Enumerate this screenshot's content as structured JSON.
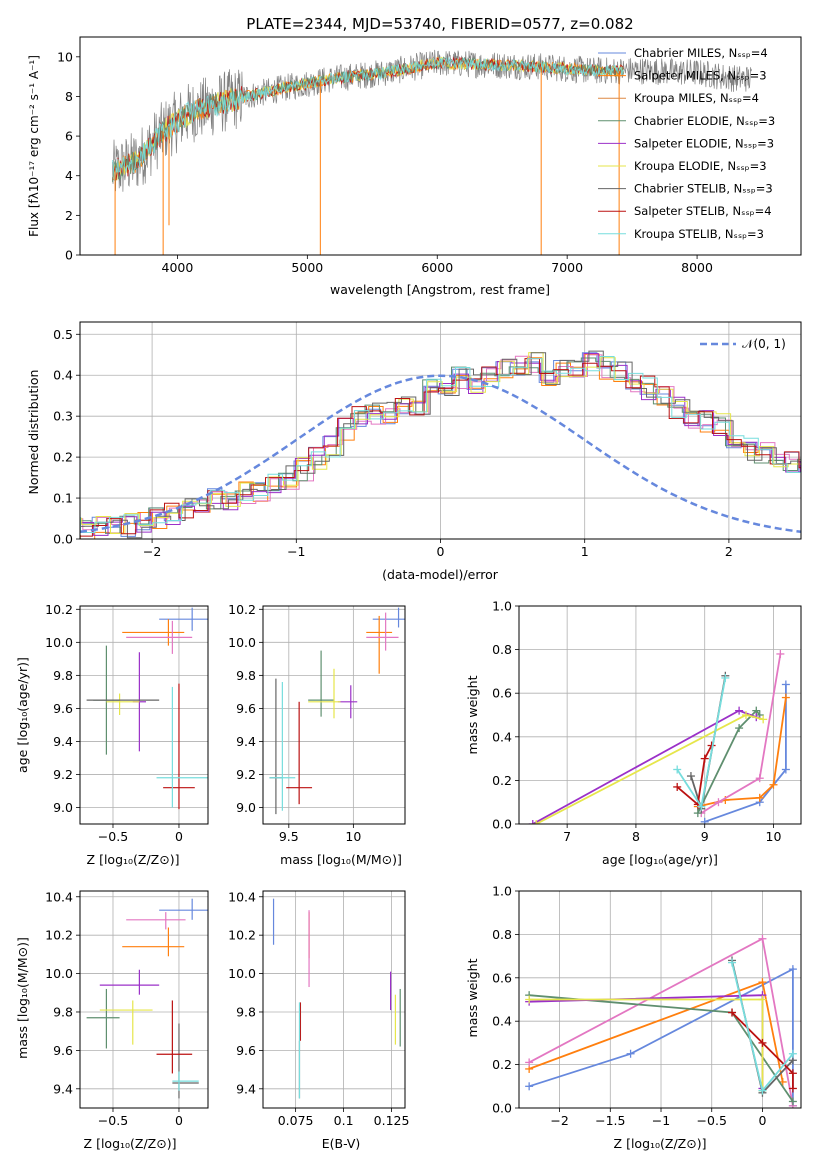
{
  "figure_title": "PLATE=2344, MJD=53740, FIBERID=0577, z=0.082",
  "colors": {
    "chabrier_miles": "#6688dd",
    "salpeter_miles": "#ff7f0e",
    "kroupa_miles": "#dd8844",
    "chabrier_elodie": "#5f8f6f",
    "salpeter_elodie": "#9b30c8",
    "kroupa_elodie": "#e6e64a",
    "chabrier_stelib": "#666666",
    "salpeter_stelib": "#bb1111",
    "kroupa_stelib": "#77dddd",
    "pink": "#e377c2",
    "normal_curve": "#6688dd",
    "spectrum_gray": "#808080"
  },
  "labels": {
    "p1_xlabel": "wavelength [Angstrom, rest frame]",
    "p1_ylabel": "Flux [fλ10⁻¹⁷ erg cm⁻² s⁻¹ A⁻¹]",
    "p2_xlabel": "(data-model)/error",
    "p2_ylabel": "Normed distribution",
    "p2_legend": "𝒩(0, 1)",
    "p3_xlabel": "Z [log₁₀(Z/Z⊙)]",
    "p3_ylabel": "age  [log₁₀(age/yr)]",
    "p4_xlabel": "mass [log₁₀(M/M⊙)]",
    "p5_xlabel": "age  [log₁₀(age/yr)]",
    "p5_ylabel": "mass weight",
    "p6_xlabel": "Z [log₁₀(Z/Z⊙)]",
    "p6_ylabel": "mass [log₁₀(M/M⊙)]",
    "p7_xlabel": "E(B-V)",
    "p8_xlabel": "Z [log₁₀(Z/Z⊙)]",
    "p8_ylabel": "mass weight"
  },
  "legend_top": [
    {
      "name": "Chabrier MILES, Nₛₛₚ=4",
      "color": "#6688dd"
    },
    {
      "name": "Salpeter MILES, Nₛₛₚ=3",
      "color": "#ff7f0e"
    },
    {
      "name": "Kroupa MILES, Nₛₛₚ=4",
      "color": "#dd8844"
    },
    {
      "name": "Chabrier ELODIE, Nₛₛₚ=3",
      "color": "#5f8f6f"
    },
    {
      "name": "Salpeter ELODIE, Nₛₛₚ=3",
      "color": "#9b30c8"
    },
    {
      "name": "Kroupa ELODIE, Nₛₛₚ=3",
      "color": "#e6e64a"
    },
    {
      "name": "Chabrier STELIB, Nₛₛₚ=3",
      "color": "#666666"
    },
    {
      "name": "Salpeter STELIB, Nₛₛₚ=4",
      "color": "#bb1111"
    },
    {
      "name": "Kroupa STELIB, Nₛₛₚ=3",
      "color": "#77dddd"
    }
  ],
  "chart_data": [
    {
      "type": "line",
      "panel": "spectrum",
      "xlim": [
        3250,
        8800
      ],
      "ylim": [
        0,
        11
      ],
      "xticks": [
        4000,
        5000,
        6000,
        7000,
        8000
      ],
      "yticks": [
        0,
        2,
        4,
        6,
        8,
        10
      ],
      "trend": [
        [
          3500,
          4.2
        ],
        [
          3700,
          4.8
        ],
        [
          3900,
          6.3
        ],
        [
          4100,
          7.2
        ],
        [
          4400,
          7.8
        ],
        [
          4800,
          8.4
        ],
        [
          5200,
          8.9
        ],
        [
          5600,
          9.2
        ],
        [
          6000,
          9.7
        ],
        [
          6400,
          9.6
        ],
        [
          6800,
          9.5
        ],
        [
          7200,
          9.3
        ],
        [
          7600,
          9.3
        ],
        [
          8000,
          9.2
        ],
        [
          8300,
          8.9
        ],
        [
          8420,
          8.9
        ]
      ],
      "models_end": 7440,
      "drops": [
        [
          3520,
          0
        ],
        [
          3890,
          0
        ],
        [
          3935,
          1.5
        ],
        [
          5100,
          0
        ],
        [
          6800,
          0
        ],
        [
          7400,
          0
        ]
      ]
    },
    {
      "type": "step",
      "panel": "residual_histogram",
      "xlim": [
        -2.5,
        2.5
      ],
      "ylim": [
        0,
        0.53
      ],
      "xticks": [
        -2,
        -1,
        0,
        1,
        2
      ],
      "yticks": [
        0.0,
        0.1,
        0.2,
        0.3,
        0.4,
        0.5
      ],
      "bin_width": 0.1,
      "base_values": [
        0.025,
        0.022,
        0.026,
        0.03,
        0.033,
        0.04,
        0.05,
        0.065,
        0.075,
        0.09,
        0.1,
        0.1,
        0.11,
        0.12,
        0.14,
        0.15,
        0.17,
        0.2,
        0.23,
        0.27,
        0.3,
        0.31,
        0.31,
        0.32,
        0.33,
        0.36,
        0.38,
        0.39,
        0.38,
        0.4,
        0.42,
        0.43,
        0.43,
        0.4,
        0.41,
        0.42,
        0.43,
        0.42,
        0.41,
        0.38,
        0.37,
        0.35,
        0.32,
        0.3,
        0.29,
        0.28,
        0.25,
        0.22,
        0.21,
        0.2,
        0.19,
        0.17,
        0.16,
        0.14,
        0.15,
        0.16,
        0.13,
        0.1,
        0.09,
        0.08,
        0.07,
        0.06,
        0.05,
        0.045,
        0.03,
        0.025,
        0.02
      ],
      "normal_mean": 0,
      "normal_sigma": 1
    },
    {
      "type": "errorbar",
      "panel": "Z_vs_age",
      "xlim": [
        -0.75,
        0.22
      ],
      "ylim": [
        8.9,
        10.22
      ],
      "xticks": [
        -0.5,
        0.0
      ],
      "yticks": [
        9.0,
        9.2,
        9.4,
        9.6,
        9.8,
        10.0,
        10.2
      ],
      "points": [
        {
          "x": 0.1,
          "y": 10.14,
          "xerr": [
            0.25,
            0.15
          ],
          "yerr": [
            0.07,
            0.07
          ],
          "color": "#6688dd"
        },
        {
          "x": -0.08,
          "y": 10.06,
          "xerr": [
            0.35,
            0.12
          ],
          "yerr": [
            0.08,
            0.08
          ],
          "color": "#ff7f0e"
        },
        {
          "x": -0.05,
          "y": 10.03,
          "xerr": [
            0.35,
            0.15
          ],
          "yerr": [
            0.1,
            0.1
          ],
          "color": "#e377c2"
        },
        {
          "x": -0.55,
          "y": 9.65,
          "xerr": [
            0.1,
            0.1
          ],
          "yerr": [
            0.33,
            0.33
          ],
          "color": "#5f8f6f"
        },
        {
          "x": -0.3,
          "y": 9.64,
          "xerr": [
            0.05,
            0.05
          ],
          "yerr": [
            0.3,
            0.3
          ],
          "color": "#9b30c8"
        },
        {
          "x": -0.45,
          "y": 9.64,
          "xerr": [
            0.1,
            0.15
          ],
          "yerr": [
            0.08,
            0.05
          ],
          "color": "#e6e64a"
        },
        {
          "x": -0.6,
          "y": 9.65,
          "xerr": [
            0.1,
            0.45
          ],
          "yerr": [
            0.0,
            0.0
          ],
          "color": "#666666"
        },
        {
          "x": 0.0,
          "y": 9.12,
          "xerr": [
            0.12,
            0.12
          ],
          "yerr": [
            0.13,
            0.63
          ],
          "color": "#bb1111"
        },
        {
          "x": -0.05,
          "y": 9.18,
          "xerr": [
            0.12,
            0.28
          ],
          "yerr": [
            0.18,
            0.55
          ],
          "color": "#77dddd"
        }
      ]
    },
    {
      "type": "errorbar",
      "panel": "mass_vs_age",
      "xlim": [
        9.3,
        10.4
      ],
      "ylim": [
        8.9,
        10.22
      ],
      "xticks": [
        9.5,
        10.0
      ],
      "yticks": [
        9.0,
        9.2,
        9.4,
        9.6,
        9.8,
        10.0,
        10.2
      ],
      "points": [
        {
          "x": 10.35,
          "y": 10.14,
          "xerr": [
            0.2,
            0.05
          ],
          "yerr": [
            0.05,
            0.07
          ],
          "color": "#6688dd"
        },
        {
          "x": 10.2,
          "y": 10.06,
          "xerr": [
            0.1,
            0.1
          ],
          "yerr": [
            0.25,
            0.1
          ],
          "color": "#ff7f0e"
        },
        {
          "x": 10.25,
          "y": 10.03,
          "xerr": [
            0.15,
            0.1
          ],
          "yerr": [
            0.08,
            0.15
          ],
          "color": "#e377c2"
        },
        {
          "x": 9.75,
          "y": 9.65,
          "xerr": [
            0.1,
            0.1
          ],
          "yerr": [
            0.1,
            0.3
          ],
          "color": "#5f8f6f"
        },
        {
          "x": 9.98,
          "y": 9.64,
          "xerr": [
            0.1,
            0.05
          ],
          "yerr": [
            0.1,
            0.1
          ],
          "color": "#9b30c8"
        },
        {
          "x": 9.85,
          "y": 9.64,
          "xerr": [
            0.2,
            0.05
          ],
          "yerr": [
            0.1,
            0.2
          ],
          "color": "#e6e64a"
        },
        {
          "x": 9.4,
          "y": 9.18,
          "xerr": [
            0.05,
            0.05
          ],
          "yerr": [
            0.22,
            0.6
          ],
          "color": "#666666"
        },
        {
          "x": 9.58,
          "y": 9.12,
          "xerr": [
            0.1,
            0.1
          ],
          "yerr": [
            0.1,
            0.52
          ],
          "color": "#bb1111"
        },
        {
          "x": 9.45,
          "y": 9.18,
          "xerr": [
            0.1,
            0.1
          ],
          "yerr": [
            0.2,
            0.58
          ],
          "color": "#77dddd"
        }
      ]
    },
    {
      "type": "line",
      "panel": "age_vs_mass_weight",
      "xlim": [
        6.3,
        10.4
      ],
      "ylim": [
        0,
        1
      ],
      "xticks": [
        7,
        8,
        9,
        10
      ],
      "yticks": [
        0.0,
        0.2,
        0.4,
        0.6,
        0.8,
        1.0
      ],
      "series": [
        {
          "color": "#6688dd",
          "x": [
            9.0,
            9.8,
            10.18,
            10.18
          ],
          "y": [
            0.01,
            0.1,
            0.25,
            0.64
          ]
        },
        {
          "color": "#ff7f0e",
          "x": [
            8.9,
            9.3,
            9.8,
            10.0,
            10.18
          ],
          "y": [
            0.08,
            0.11,
            0.12,
            0.18,
            0.58
          ]
        },
        {
          "color": "#e377c2",
          "x": [
            8.95,
            9.2,
            9.8,
            10.1
          ],
          "y": [
            0.05,
            0.1,
            0.21,
            0.78
          ]
        },
        {
          "color": "#5f8f6f",
          "x": [
            8.9,
            9.5,
            9.75,
            9.8
          ],
          "y": [
            0.05,
            0.44,
            0.52,
            0.5
          ]
        },
        {
          "color": "#9b30c8",
          "x": [
            6.5,
            9.5,
            9.75
          ],
          "y": [
            0.0,
            0.52,
            0.49
          ]
        },
        {
          "color": "#e6e64a",
          "x": [
            6.55,
            9.6,
            9.85
          ],
          "y": [
            0.0,
            0.5,
            0.48
          ]
        },
        {
          "color": "#666666",
          "x": [
            8.8,
            8.95,
            9.3
          ],
          "y": [
            0.22,
            0.07,
            0.68
          ]
        },
        {
          "color": "#bb1111",
          "x": [
            8.6,
            8.9,
            9.0,
            9.1
          ],
          "y": [
            0.17,
            0.09,
            0.3,
            0.36
          ]
        },
        {
          "color": "#77dddd",
          "x": [
            8.6,
            8.95,
            9.3
          ],
          "y": [
            0.25,
            0.08,
            0.67
          ]
        }
      ]
    },
    {
      "type": "errorbar",
      "panel": "Z_vs_mass",
      "xlim": [
        -0.75,
        0.22
      ],
      "ylim": [
        9.3,
        10.43
      ],
      "xticks": [
        -0.5,
        0.0
      ],
      "yticks": [
        9.4,
        9.6,
        9.8,
        10.0,
        10.2,
        10.4
      ],
      "points": [
        {
          "x": 0.1,
          "y": 10.33,
          "xerr": [
            0.25,
            0.15
          ],
          "yerr": [
            0.05,
            0.06
          ],
          "color": "#6688dd"
        },
        {
          "x": -0.08,
          "y": 10.14,
          "xerr": [
            0.35,
            0.12
          ],
          "yerr": [
            0.05,
            0.1
          ],
          "color": "#ff7f0e"
        },
        {
          "x": -0.1,
          "y": 10.28,
          "xerr": [
            0.3,
            0.15
          ],
          "yerr": [
            0.05,
            0.04
          ],
          "color": "#e377c2"
        },
        {
          "x": -0.55,
          "y": 9.77,
          "xerr": [
            0.15,
            0.1
          ],
          "yerr": [
            0.16,
            0.15
          ],
          "color": "#5f8f6f"
        },
        {
          "x": -0.3,
          "y": 9.94,
          "xerr": [
            0.3,
            0.15
          ],
          "yerr": [
            0.05,
            0.08
          ],
          "color": "#9b30c8"
        },
        {
          "x": -0.35,
          "y": 9.81,
          "xerr": [
            0.25,
            0.15
          ],
          "yerr": [
            0.18,
            0.05
          ],
          "color": "#e6e64a"
        },
        {
          "x": 0.0,
          "y": 9.43,
          "xerr": [
            0.05,
            0.15
          ],
          "yerr": [
            0.08,
            0.31
          ],
          "color": "#666666"
        },
        {
          "x": -0.05,
          "y": 9.58,
          "xerr": [
            0.12,
            0.15
          ],
          "yerr": [
            0.1,
            0.28
          ],
          "color": "#bb1111"
        },
        {
          "x": 0.0,
          "y": 9.44,
          "xerr": [
            0.05,
            0.15
          ],
          "yerr": [
            0.05,
            0.05
          ],
          "color": "#77dddd"
        }
      ]
    },
    {
      "type": "errorbar",
      "panel": "EBV_vs_mass",
      "xlim": [
        0.058,
        0.132
      ],
      "ylim": [
        9.3,
        10.43
      ],
      "xticks": [
        0.075,
        0.1,
        0.125
      ],
      "yticks": [
        9.4,
        9.6,
        9.8,
        10.0,
        10.2,
        10.4
      ],
      "points": [
        {
          "x": 0.0635,
          "y": 10.27,
          "xerr": [
            0,
            0
          ],
          "yerr": [
            0.12,
            0.12
          ],
          "color": "#6688dd"
        },
        {
          "x": 0.082,
          "y": 10.2,
          "xerr": [
            0,
            0
          ],
          "yerr": [
            0.12,
            0.12
          ],
          "color": "#ff7f0e"
        },
        {
          "x": 0.082,
          "y": 10.13,
          "xerr": [
            0,
            0
          ],
          "yerr": [
            0.2,
            0.2
          ],
          "color": "#e377c2"
        },
        {
          "x": 0.1295,
          "y": 9.77,
          "xerr": [
            0,
            0
          ],
          "yerr": [
            0.15,
            0.15
          ],
          "color": "#5f8f6f"
        },
        {
          "x": 0.1245,
          "y": 9.91,
          "xerr": [
            0,
            0
          ],
          "yerr": [
            0.1,
            0.1
          ],
          "color": "#9b30c8"
        },
        {
          "x": 0.127,
          "y": 9.76,
          "xerr": [
            0,
            0
          ],
          "yerr": [
            0.13,
            0.13
          ],
          "color": "#e6e64a"
        },
        {
          "x": 0.077,
          "y": 9.5,
          "xerr": [
            0,
            0
          ],
          "yerr": [
            0.15,
            0.15
          ],
          "color": "#666666"
        },
        {
          "x": 0.0775,
          "y": 9.75,
          "xerr": [
            0,
            0
          ],
          "yerr": [
            0.1,
            0.1
          ],
          "color": "#bb1111"
        },
        {
          "x": 0.077,
          "y": 9.6,
          "xerr": [
            0,
            0
          ],
          "yerr": [
            0.25,
            0.25
          ],
          "color": "#77dddd"
        }
      ]
    },
    {
      "type": "line",
      "panel": "Z_vs_mass_weight",
      "xlim": [
        -2.4,
        0.38
      ],
      "ylim": [
        0,
        1
      ],
      "xticks": [
        -2.0,
        -1.5,
        -1.0,
        -0.5,
        0.0
      ],
      "yticks": [
        0.0,
        0.2,
        0.4,
        0.6,
        0.8,
        1.0
      ],
      "series": [
        {
          "color": "#6688dd",
          "x": [
            -2.3,
            -1.3,
            0.3,
            0.3
          ],
          "y": [
            0.1,
            0.25,
            0.64,
            0.01
          ]
        },
        {
          "color": "#ff7f0e",
          "x": [
            -2.3,
            0.0,
            0.2
          ],
          "y": [
            0.18,
            0.58,
            0.12
          ]
        },
        {
          "color": "#e377c2",
          "x": [
            -2.3,
            0.0,
            0.3
          ],
          "y": [
            0.21,
            0.78,
            0.01
          ]
        },
        {
          "color": "#5f8f6f",
          "x": [
            -2.3,
            -0.3,
            0.3
          ],
          "y": [
            0.52,
            0.44,
            0.03
          ]
        },
        {
          "color": "#9b30c8",
          "x": [
            -2.3,
            0.0,
            0.0
          ],
          "y": [
            0.49,
            0.52,
            0.09
          ]
        },
        {
          "color": "#e6e64a",
          "x": [
            -2.3,
            0.0,
            0.0
          ],
          "y": [
            0.5,
            0.5,
            0.08
          ]
        },
        {
          "color": "#666666",
          "x": [
            -0.3,
            0.0,
            0.3
          ],
          "y": [
            0.68,
            0.07,
            0.22
          ]
        },
        {
          "color": "#bb1111",
          "x": [
            -0.3,
            0.0,
            0.3,
            0.3
          ],
          "y": [
            0.44,
            0.3,
            0.16,
            0.09
          ]
        },
        {
          "color": "#77dddd",
          "x": [
            -0.3,
            0.0,
            0.3
          ],
          "y": [
            0.67,
            0.08,
            0.25
          ]
        }
      ]
    }
  ]
}
